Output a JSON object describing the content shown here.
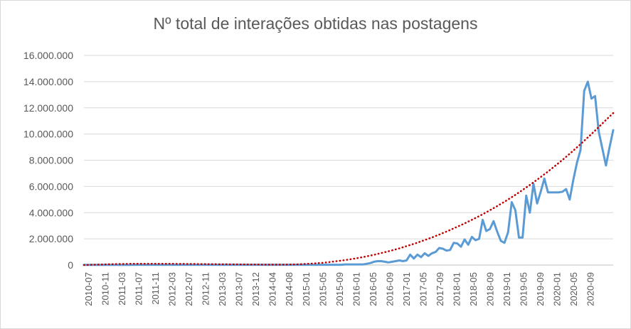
{
  "chart_data": {
    "type": "line",
    "title": "Nº total de interações obtidas nas postagens",
    "xlabel": "",
    "ylabel": "",
    "ylim": [
      0,
      16000000
    ],
    "yticks": [
      0,
      2000000,
      4000000,
      6000000,
      8000000,
      10000000,
      12000000,
      14000000,
      16000000
    ],
    "ytick_labels": [
      "0",
      "2.000.000",
      "4.000.000",
      "6.000.000",
      "8.000.000",
      "10.000.000",
      "12.000.000",
      "14.000.000",
      "16.000.000"
    ],
    "xtick_labels": [
      "2010-07",
      "2010-11",
      "2011-03",
      "2011-07",
      "2011-11",
      "2012-03",
      "2012-07",
      "2012-11",
      "2013-03",
      "2013-07",
      "2013-12",
      "2014-04",
      "2014-08",
      "2015-01",
      "2015-05",
      "2015-09",
      "2016-01",
      "2016-05",
      "2016-09",
      "2017-01",
      "2017-05",
      "2017-09",
      "2018-01",
      "2018-05",
      "2018-09",
      "2019-01",
      "2019-05",
      "2019-09",
      "2020-01",
      "2020-05",
      "2020-09"
    ],
    "grid": true,
    "legend": "none",
    "series": [
      {
        "color": "#5b9bd5",
        "style": "solid",
        "values": [
          10000,
          10000,
          10000,
          10000,
          10000,
          10000,
          10000,
          10000,
          10000,
          10000,
          10000,
          10000,
          10000,
          10000,
          20000,
          20000,
          20000,
          20000,
          20000,
          20000,
          20000,
          20000,
          20000,
          20000,
          20000,
          20000,
          20000,
          20000,
          20000,
          20000,
          20000,
          20000,
          20000,
          20000,
          20000,
          20000,
          20000,
          20000,
          20000,
          20000,
          20000,
          20000,
          20000,
          20000,
          20000,
          20000,
          20000,
          20000,
          20000,
          20000,
          20000,
          20000,
          20000,
          20000,
          20000,
          20000,
          20000,
          20000,
          20000,
          20000,
          20000,
          20000,
          20000,
          20000,
          20000,
          20000,
          20000,
          20000,
          20000,
          20000,
          20000,
          20000,
          50000,
          50000,
          50000,
          50000,
          50000,
          50000,
          100000,
          150000,
          250000,
          300000,
          300000,
          250000,
          200000,
          250000,
          300000,
          350000,
          300000,
          350000,
          800000,
          500000,
          800000,
          600000,
          900000,
          700000,
          900000,
          1000000,
          1300000,
          1250000,
          1100000,
          1150000,
          1700000,
          1650000,
          1400000,
          1950000,
          1550000,
          2150000,
          1900000,
          2000000,
          3450000,
          2600000,
          2750000,
          3350000,
          2550000,
          1850000,
          1700000,
          2500000,
          4800000,
          4200000,
          2100000,
          2100000,
          5300000,
          4000000,
          6200000,
          4700000,
          5600000,
          6600000,
          5550000,
          5550000,
          5550000,
          5550000,
          5600000,
          5800000,
          5000000,
          6500000,
          7800000,
          8800000,
          13300000,
          14000000,
          12700000,
          12900000,
          10200000,
          8900000,
          7600000,
          9000000,
          10300000
        ]
      },
      {
        "color": "#c00000",
        "style": "dotted",
        "values": [
          0,
          20000,
          40000,
          60000,
          75000,
          85000,
          95000,
          100000,
          100000,
          100000,
          95000,
          90000,
          85000,
          80000,
          75000,
          70000,
          65000,
          60000,
          55000,
          50000,
          45000,
          40000,
          35000,
          30000,
          30000,
          40000,
          60000,
          90000,
          130000,
          180000,
          250000,
          330000,
          420000,
          520000,
          640000,
          770000,
          920000,
          1080000,
          1250000,
          1440000,
          1640000,
          1860000,
          2090000,
          2340000,
          2600000,
          2880000,
          3170000,
          3480000,
          3800000,
          4150000,
          4510000,
          4890000,
          5290000,
          5710000,
          6150000,
          6610000,
          7080000,
          7580000,
          8100000,
          8640000,
          9200000,
          9780000,
          10380000,
          11000000,
          11600000
        ]
      }
    ]
  }
}
